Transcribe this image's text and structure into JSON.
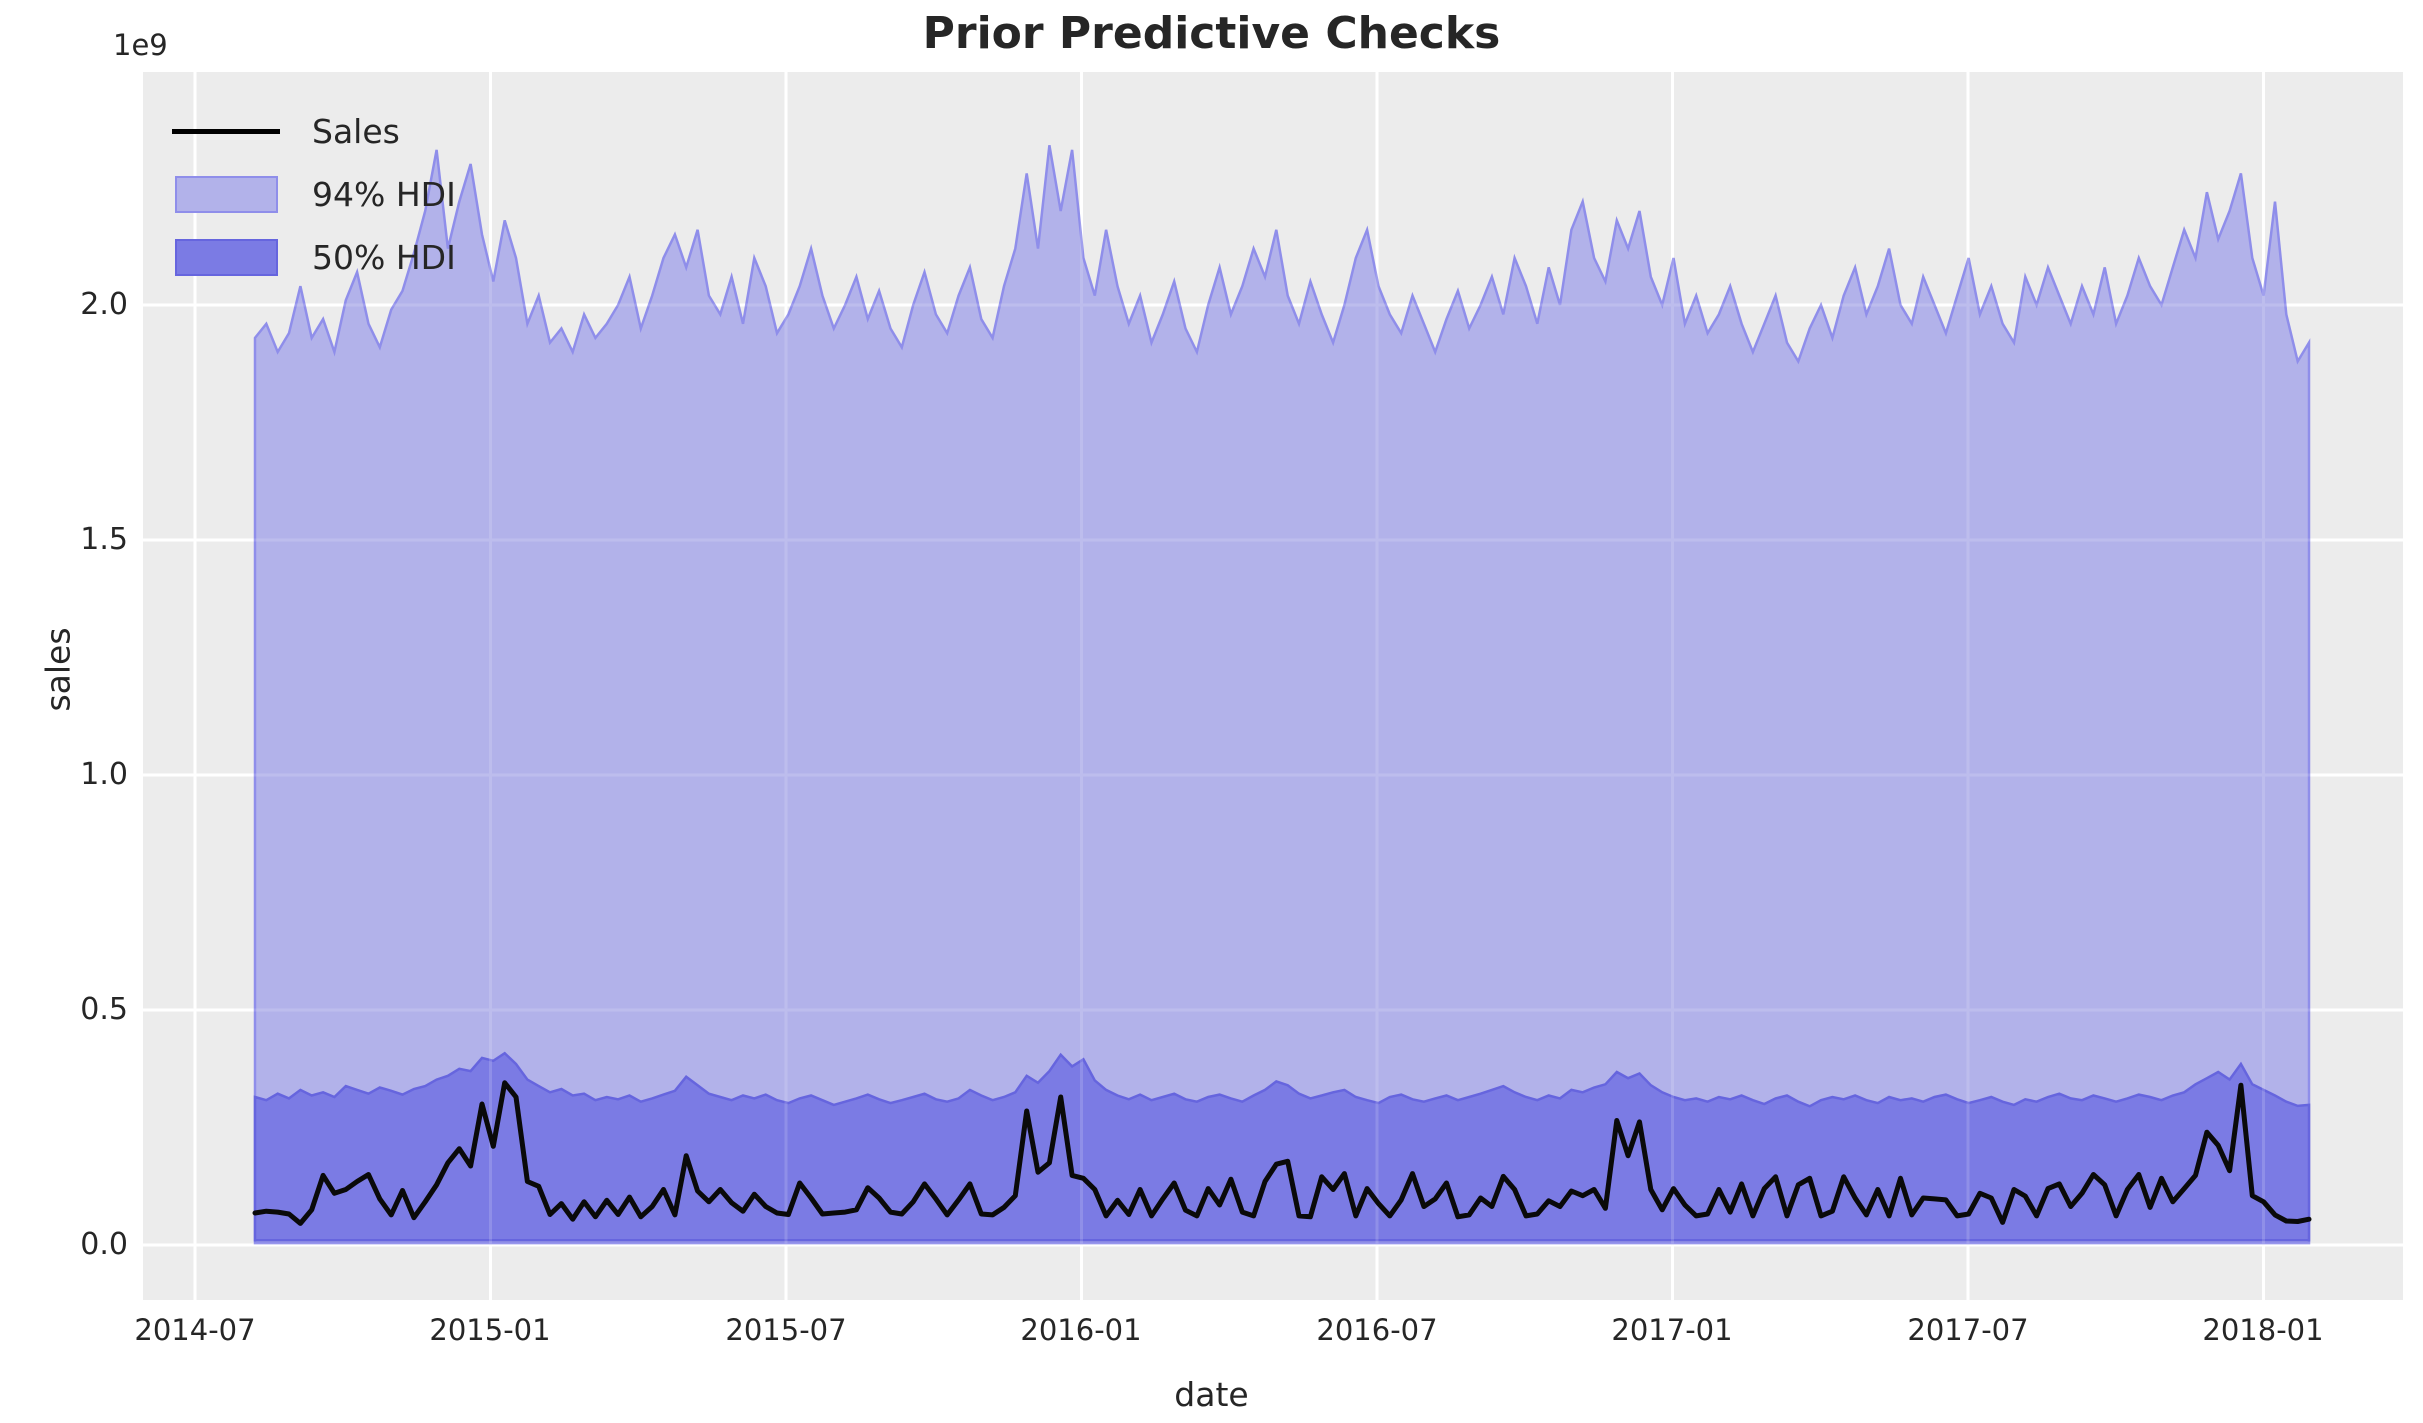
{
  "figure": {
    "title": "Prior Predictive Checks",
    "axis_offset_text": "1e9",
    "xlabel": "date",
    "ylabel": "sales"
  },
  "legend": {
    "items": [
      {
        "label": "Sales",
        "type": "line",
        "color": "#000000"
      },
      {
        "label": "94% HDI",
        "type": "patch",
        "fill": "#b2b2ea",
        "edge": "#8f8eea"
      },
      {
        "label": "50% HDI",
        "type": "patch",
        "fill": "#7b7be4",
        "edge": "#6665de"
      }
    ]
  },
  "colors": {
    "figure_background": "#ffffff",
    "axes_background": "#ececec",
    "gridline": "#ffffff",
    "text": "#262626",
    "sales_line": "#0a0a0a",
    "hdi94_fill": "#b2b2ea",
    "hdi94_edge": "#8f8eea",
    "hdi50_fill": "#7b7be4",
    "hdi50_edge": "#6665de"
  },
  "chart_data": {
    "type": "area",
    "title": "Prior Predictive Checks",
    "xlabel": "date",
    "ylabel": "sales",
    "y_scale_factor": "1e9",
    "grid": true,
    "legend_position": "upper left",
    "x_tick_labels": [
      "2014-07",
      "2015-01",
      "2015-07",
      "2016-01",
      "2016-07",
      "2017-01",
      "2017-07",
      "2018-01"
    ],
    "y_tick_labels": [
      "0.0",
      "0.5",
      "1.0",
      "1.5",
      "2.0"
    ],
    "y_tick_values_1e9": [
      0.0,
      0.5,
      1.0,
      1.5,
      2.0
    ],
    "ylim_1e9": [
      -0.117,
      2.496
    ],
    "x_start_date": "2014-08-03",
    "x_end_date": "2018-01-28",
    "x_freq_days": 7,
    "n_points": 182,
    "series": [
      {
        "name": "Sales",
        "type": "line",
        "color": "#000000",
        "values_1e9": [
          0.068,
          0.072,
          0.07,
          0.066,
          0.046,
          0.075,
          0.148,
          0.11,
          0.118,
          0.135,
          0.15,
          0.098,
          0.064,
          0.116,
          0.058,
          0.092,
          0.128,
          0.175,
          0.205,
          0.168,
          0.3,
          0.21,
          0.345,
          0.315,
          0.135,
          0.125,
          0.065,
          0.088,
          0.055,
          0.092,
          0.06,
          0.095,
          0.065,
          0.102,
          0.06,
          0.082,
          0.118,
          0.064,
          0.19,
          0.115,
          0.092,
          0.118,
          0.09,
          0.072,
          0.108,
          0.082,
          0.068,
          0.065,
          0.132,
          0.1,
          0.066,
          0.068,
          0.07,
          0.075,
          0.122,
          0.1,
          0.07,
          0.066,
          0.092,
          0.13,
          0.098,
          0.064,
          0.096,
          0.13,
          0.066,
          0.064,
          0.08,
          0.105,
          0.285,
          0.155,
          0.175,
          0.315,
          0.148,
          0.142,
          0.118,
          0.062,
          0.095,
          0.065,
          0.118,
          0.062,
          0.098,
          0.132,
          0.074,
          0.062,
          0.12,
          0.085,
          0.14,
          0.07,
          0.062,
          0.135,
          0.172,
          0.178,
          0.062,
          0.06,
          0.145,
          0.118,
          0.152,
          0.062,
          0.12,
          0.088,
          0.062,
          0.096,
          0.152,
          0.082,
          0.098,
          0.132,
          0.06,
          0.064,
          0.1,
          0.082,
          0.146,
          0.118,
          0.062,
          0.066,
          0.094,
          0.082,
          0.115,
          0.105,
          0.118,
          0.078,
          0.265,
          0.19,
          0.262,
          0.118,
          0.075,
          0.12,
          0.085,
          0.062,
          0.066,
          0.118,
          0.07,
          0.13,
          0.062,
          0.12,
          0.145,
          0.062,
          0.128,
          0.142,
          0.062,
          0.072,
          0.145,
          0.1,
          0.064,
          0.118,
          0.062,
          0.142,
          0.064,
          0.1,
          0.098,
          0.096,
          0.062,
          0.066,
          0.11,
          0.1,
          0.048,
          0.118,
          0.104,
          0.062,
          0.12,
          0.13,
          0.082,
          0.11,
          0.15,
          0.128,
          0.062,
          0.118,
          0.15,
          0.08,
          0.142,
          0.092,
          0.12,
          0.148,
          0.24,
          0.212,
          0.158,
          0.34,
          0.105,
          0.092,
          0.064,
          0.051,
          0.05,
          0.055
        ]
      },
      {
        "name": "94% HDI",
        "type": "band",
        "fill": "#b2b2ea",
        "edge": "#8f8eea",
        "lower_1e9": 0.004,
        "upper_values_1e9": [
          1.93,
          1.96,
          1.9,
          1.94,
          2.04,
          1.93,
          1.97,
          1.9,
          2.01,
          2.07,
          1.96,
          1.91,
          1.99,
          2.03,
          2.11,
          2.2,
          2.33,
          2.12,
          2.22,
          2.3,
          2.15,
          2.05,
          2.18,
          2.1,
          1.96,
          2.02,
          1.92,
          1.95,
          1.9,
          1.98,
          1.93,
          1.96,
          2.0,
          2.06,
          1.95,
          2.02,
          2.1,
          2.15,
          2.08,
          2.16,
          2.02,
          1.98,
          2.06,
          1.96,
          2.1,
          2.04,
          1.94,
          1.98,
          2.04,
          2.12,
          2.02,
          1.95,
          2.0,
          2.06,
          1.97,
          2.03,
          1.95,
          1.91,
          2.0,
          2.07,
          1.98,
          1.94,
          2.02,
          2.08,
          1.97,
          1.93,
          2.04,
          2.12,
          2.28,
          2.12,
          2.34,
          2.2,
          2.33,
          2.1,
          2.02,
          2.16,
          2.04,
          1.96,
          2.02,
          1.92,
          1.98,
          2.05,
          1.95,
          1.9,
          2.0,
          2.08,
          1.98,
          2.04,
          2.12,
          2.06,
          2.16,
          2.02,
          1.96,
          2.05,
          1.98,
          1.92,
          2.0,
          2.1,
          2.16,
          2.04,
          1.98,
          1.94,
          2.02,
          1.96,
          1.9,
          1.97,
          2.03,
          1.95,
          2.0,
          2.06,
          1.98,
          2.1,
          2.04,
          1.96,
          2.08,
          2.0,
          2.16,
          2.22,
          2.1,
          2.05,
          2.18,
          2.12,
          2.2,
          2.06,
          2.0,
          2.1,
          1.96,
          2.02,
          1.94,
          1.98,
          2.04,
          1.96,
          1.9,
          1.96,
          2.02,
          1.92,
          1.88,
          1.95,
          2.0,
          1.93,
          2.02,
          2.08,
          1.98,
          2.04,
          2.12,
          2.0,
          1.96,
          2.06,
          2.0,
          1.94,
          2.02,
          2.1,
          1.98,
          2.04,
          1.96,
          1.92,
          2.06,
          2.0,
          2.08,
          2.02,
          1.96,
          2.04,
          1.98,
          2.08,
          1.96,
          2.02,
          2.1,
          2.04,
          2.0,
          2.08,
          2.16,
          2.1,
          2.24,
          2.14,
          2.2,
          2.28,
          2.1,
          2.02,
          2.22,
          1.98,
          1.88,
          1.92
        ]
      },
      {
        "name": "50% HDI",
        "type": "band",
        "fill": "#7b7be4",
        "edge": "#6665de",
        "lower_1e9": 0.01,
        "upper_values_1e9": [
          0.315,
          0.308,
          0.322,
          0.312,
          0.33,
          0.318,
          0.325,
          0.315,
          0.338,
          0.33,
          0.322,
          0.335,
          0.328,
          0.32,
          0.332,
          0.338,
          0.352,
          0.36,
          0.375,
          0.37,
          0.398,
          0.392,
          0.408,
          0.385,
          0.352,
          0.338,
          0.325,
          0.332,
          0.318,
          0.322,
          0.308,
          0.315,
          0.31,
          0.318,
          0.305,
          0.312,
          0.32,
          0.328,
          0.358,
          0.34,
          0.322,
          0.315,
          0.308,
          0.318,
          0.312,
          0.32,
          0.308,
          0.302,
          0.312,
          0.318,
          0.308,
          0.298,
          0.305,
          0.312,
          0.32,
          0.31,
          0.302,
          0.308,
          0.315,
          0.322,
          0.31,
          0.305,
          0.312,
          0.33,
          0.318,
          0.308,
          0.315,
          0.325,
          0.36,
          0.345,
          0.37,
          0.405,
          0.38,
          0.395,
          0.35,
          0.33,
          0.318,
          0.31,
          0.32,
          0.308,
          0.315,
          0.322,
          0.31,
          0.305,
          0.315,
          0.32,
          0.312,
          0.305,
          0.318,
          0.33,
          0.348,
          0.34,
          0.322,
          0.312,
          0.318,
          0.325,
          0.33,
          0.315,
          0.308,
          0.302,
          0.315,
          0.32,
          0.31,
          0.305,
          0.312,
          0.318,
          0.308,
          0.315,
          0.322,
          0.33,
          0.338,
          0.325,
          0.315,
          0.308,
          0.318,
          0.312,
          0.33,
          0.325,
          0.335,
          0.342,
          0.368,
          0.355,
          0.365,
          0.34,
          0.325,
          0.315,
          0.308,
          0.312,
          0.305,
          0.315,
          0.31,
          0.318,
          0.308,
          0.3,
          0.312,
          0.318,
          0.305,
          0.295,
          0.308,
          0.315,
          0.31,
          0.318,
          0.308,
          0.302,
          0.315,
          0.308,
          0.312,
          0.305,
          0.315,
          0.32,
          0.31,
          0.302,
          0.308,
          0.315,
          0.305,
          0.298,
          0.31,
          0.305,
          0.315,
          0.322,
          0.312,
          0.308,
          0.318,
          0.312,
          0.305,
          0.312,
          0.32,
          0.315,
          0.308,
          0.318,
          0.325,
          0.342,
          0.355,
          0.368,
          0.352,
          0.385,
          0.342,
          0.33,
          0.318,
          0.305,
          0.296,
          0.298
        ]
      }
    ]
  }
}
